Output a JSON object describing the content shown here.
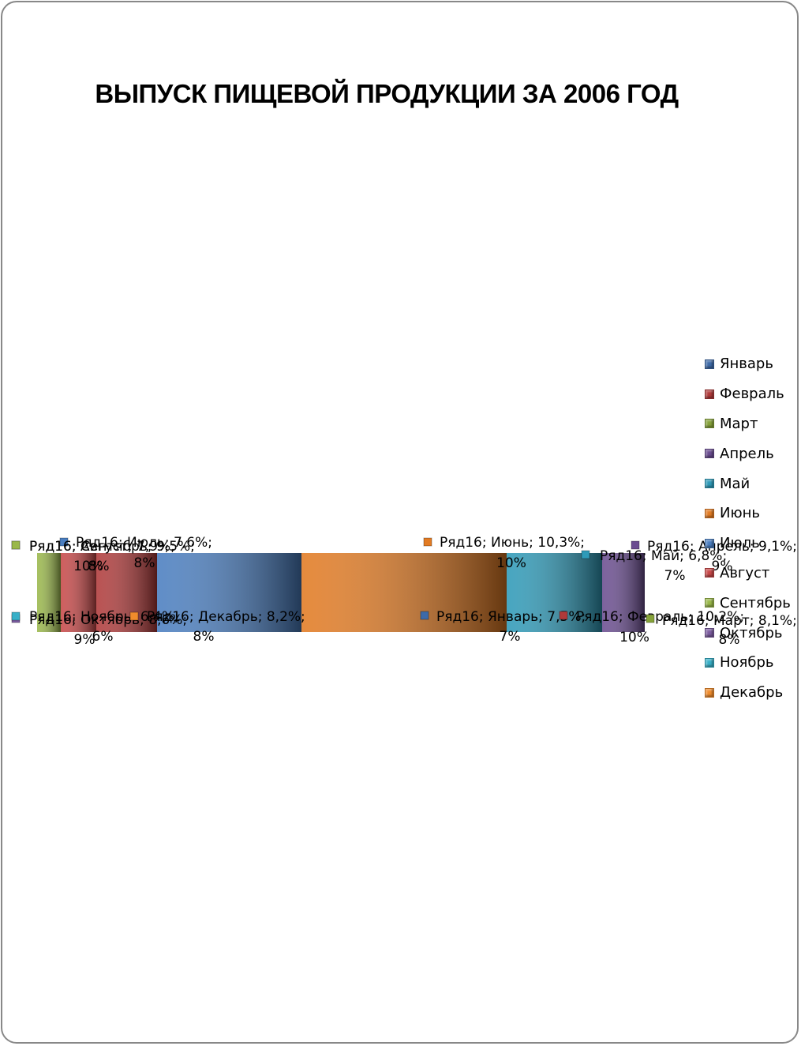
{
  "chart_data": {
    "type": "bar",
    "title": "ВЫПУСК ПИЩЕВОЙ ПРОДУКЦИИ  ЗА 2006 ГОД",
    "series_name": "Ряд16",
    "categories": [
      "Январь",
      "Февраль",
      "Март",
      "Апрель",
      "Май",
      "Июнь",
      "Июль",
      "Август",
      "Сентябрь",
      "Октябрь",
      "Ноябрь",
      "Декабрь"
    ],
    "values": [
      7.5,
      10.2,
      8.1,
      9.1,
      6.8,
      10.3,
      7.6,
      7.9,
      9.5,
      8.6,
      6.4,
      8.2
    ],
    "colors": [
      "#3e6aa8",
      "#b03a3a",
      "#86a23a",
      "#6a4c90",
      "#2e9ab8",
      "#e27b23",
      "#4a7ec0",
      "#c84848",
      "#9ab84a",
      "#7c5ca0",
      "#38b0c8",
      "#f08c2c"
    ],
    "data_labels": [
      {
        "category": "Январь",
        "text": "Ряд16; Январь; 7,5%; 7%"
      },
      {
        "category": "Февраль",
        "text": "Ряд16; Февраль; 10,2%; 10%"
      },
      {
        "category": "Март",
        "text": "Ряд16; Март; 8,1%; 8%"
      },
      {
        "category": "Апрель",
        "text": "Ряд16; Апрель; 9,1%; 9%"
      },
      {
        "category": "Май",
        "text": "Ряд16; Май; 6,8%; 7%"
      },
      {
        "category": "Июнь",
        "text": "Ряд16; Июнь; 10,3%; 10%"
      },
      {
        "category": "Июль",
        "text": "Ряд16; Июль; 7,6%; 8%"
      },
      {
        "category": "Август",
        "text": "Ряд16; Август; 7,9%; 8%"
      },
      {
        "category": "Сентябрь",
        "text": "Ряд16; Сентябрь; 9,5%; 10%"
      },
      {
        "category": "Октябрь",
        "text": "Ряд16; Октябрь; 8,6%; 9%"
      },
      {
        "category": "Ноябрь",
        "text": "Ряд16; Ноябрь; 6,4%; 6%"
      },
      {
        "category": "Декабрь",
        "text": "Ряд16; Декабрь; 8,2%; 8%"
      }
    ],
    "legend_position": "right"
  }
}
